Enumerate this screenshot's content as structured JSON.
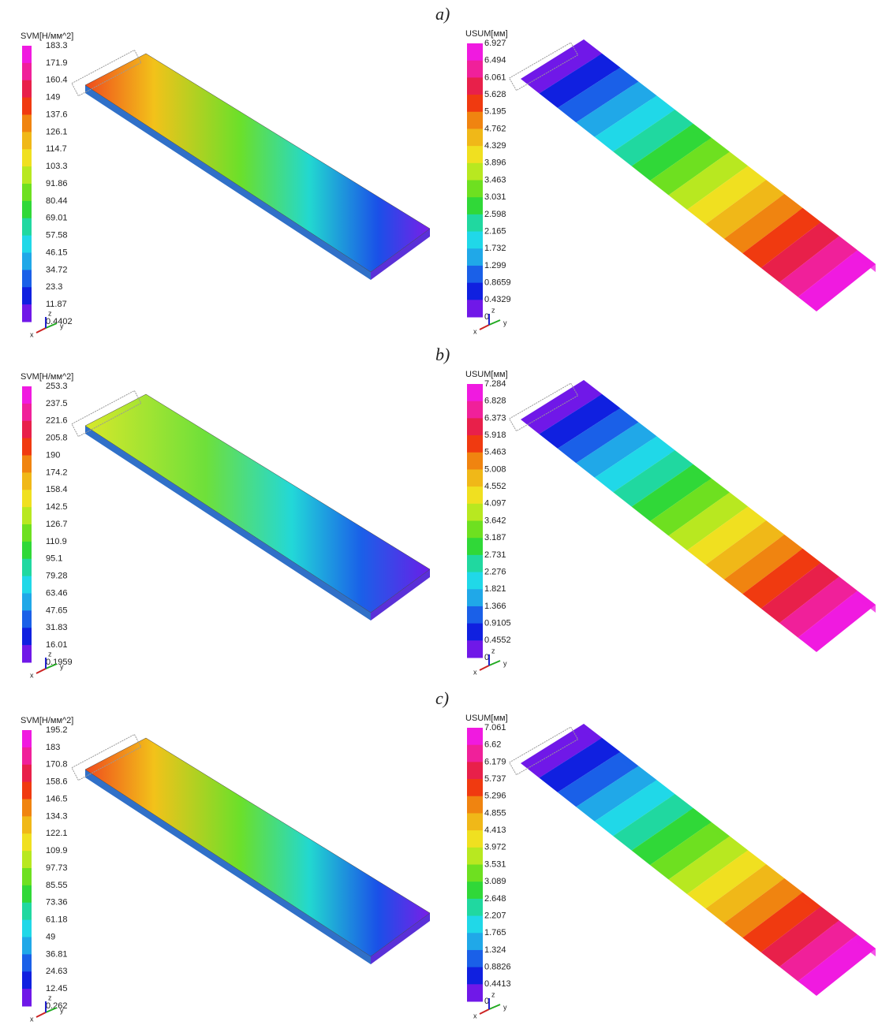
{
  "triad_labels": [
    "x",
    "y",
    "z"
  ],
  "panels": [
    {
      "label": "a)",
      "stress": {
        "title": "SVM[Н/мм^2]",
        "ticks": [
          "183.3",
          "171.9",
          "160.4",
          "149",
          "137.6",
          "126.1",
          "114.7",
          "103.3",
          "91.86",
          "80.44",
          "69.01",
          "57.58",
          "46.15",
          "34.72",
          "23.3",
          "11.87",
          "0.4402"
        ]
      },
      "displacement": {
        "title": "USUM[мм]",
        "ticks": [
          "6.927",
          "6.494",
          "6.061",
          "5.628",
          "5.195",
          "4.762",
          "4.329",
          "3.896",
          "3.463",
          "3.031",
          "2.598",
          "2.165",
          "1.732",
          "1.299",
          "0.8659",
          "0.4329",
          "0"
        ]
      }
    },
    {
      "label": "b)",
      "stress": {
        "title": "SVM[Н/мм^2]",
        "ticks": [
          "253.3",
          "237.5",
          "221.6",
          "205.8",
          "190",
          "174.2",
          "158.4",
          "142.5",
          "126.7",
          "110.9",
          "95.1",
          "79.28",
          "63.46",
          "47.65",
          "31.83",
          "16.01",
          "0.1959"
        ]
      },
      "displacement": {
        "title": "USUM[мм]",
        "ticks": [
          "7.284",
          "6.828",
          "6.373",
          "5.918",
          "5.463",
          "5.008",
          "4.552",
          "4.097",
          "3.642",
          "3.187",
          "2.731",
          "2.276",
          "1.821",
          "1.366",
          "0.9105",
          "0.4552",
          "0"
        ]
      }
    },
    {
      "label": "c)",
      "stress": {
        "title": "SVM[Н/мм^2]",
        "ticks": [
          "195.2",
          "183",
          "170.8",
          "158.6",
          "146.5",
          "134.3",
          "122.1",
          "109.9",
          "97.73",
          "85.55",
          "73.36",
          "61.18",
          "49",
          "36.81",
          "24.63",
          "12.45",
          "0.262"
        ]
      },
      "displacement": {
        "title": "USUM[мм]",
        "ticks": [
          "7.061",
          "6.62",
          "6.179",
          "5.737",
          "5.296",
          "4.855",
          "4.413",
          "3.972",
          "3.531",
          "3.089",
          "2.648",
          "2.207",
          "1.765",
          "1.324",
          "0.8826",
          "0.4413",
          "0"
        ]
      }
    }
  ]
}
